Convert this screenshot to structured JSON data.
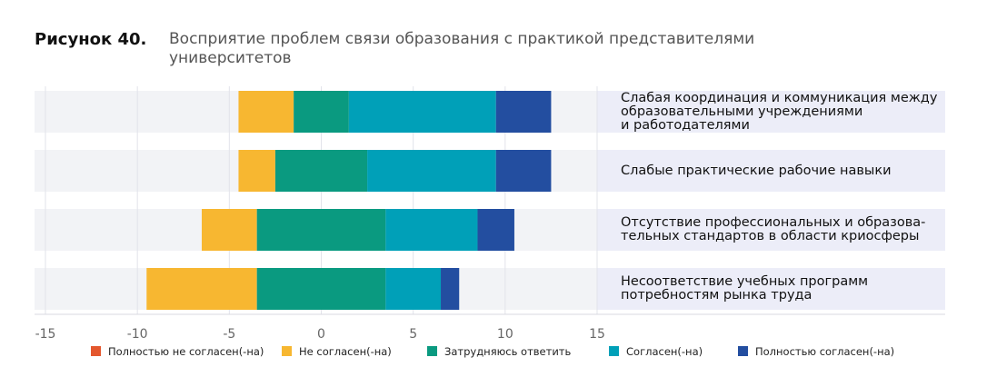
{
  "chart_data": {
    "type": "diverging-bar",
    "figure_label": "Рисунок 40.",
    "title": "Восприятие проблем связи образования с практикой представителями университетов",
    "categories": [
      "Слабая координация и коммуникация между\nобразовательными учреждениями\nи работодателями",
      "Слабые практические рабочие навыки",
      "Отсутствие профессиональных и образова-\nтельных стандартов в области криосферы",
      "Несоответствие учебных программ\nпотребностям рынка труда"
    ],
    "series": [
      {
        "name": "Полностью не согласен(-на)",
        "color": "#e4572e",
        "values": [
          0,
          0,
          0,
          0
        ]
      },
      {
        "name": "Не согласен(-на)",
        "color": "#f7b731",
        "values": [
          3,
          2,
          3,
          6
        ]
      },
      {
        "name": "Затрудняюсь ответить",
        "color": "#0a9a80",
        "values": [
          3,
          5,
          7,
          7
        ]
      },
      {
        "name": "Согласен(-на)",
        "color": "#00a0b8",
        "values": [
          8,
          7,
          5,
          3
        ]
      },
      {
        "name": "Полностью согласен(-на)",
        "color": "#234ea0",
        "values": [
          3,
          3,
          2,
          1
        ]
      }
    ],
    "xlim": [
      -15,
      15
    ],
    "xticks": [
      -15,
      -10,
      -5,
      0,
      5,
      10,
      15
    ],
    "grid": true
  }
}
